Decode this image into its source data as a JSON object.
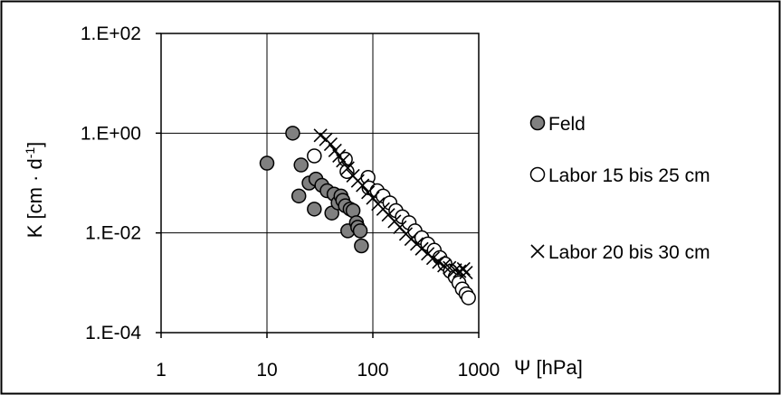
{
  "chart_data": {
    "type": "scatter",
    "title": "",
    "xlabel": "Ψ [hPa]",
    "ylabel": {
      "main": "K  [cm · d",
      "sup": "-1",
      "end": "]"
    },
    "x_scale": "log",
    "y_scale": "log",
    "xlim": [
      1,
      1000
    ],
    "ylim": [
      0.0001,
      100
    ],
    "x_ticks": [
      {
        "value": 1,
        "label": "1"
      },
      {
        "value": 10,
        "label": "10"
      },
      {
        "value": 100,
        "label": "100"
      },
      {
        "value": 1000,
        "label": "1000"
      }
    ],
    "y_ticks": [
      {
        "value": 0.0001,
        "label": "1.E-04"
      },
      {
        "value": 0.01,
        "label": "1.E-02"
      },
      {
        "value": 1,
        "label": "1.E+00"
      },
      {
        "value": 100,
        "label": "1.E+02"
      }
    ],
    "grid": true,
    "legend_position": "right",
    "series": [
      {
        "name": "Feld",
        "marker": "filled-circle",
        "color": "#808080",
        "points": [
          [
            10,
            0.25
          ],
          [
            17.5,
            1.0
          ],
          [
            20,
            0.055
          ],
          [
            21,
            0.23
          ],
          [
            25,
            0.1
          ],
          [
            28,
            0.03
          ],
          [
            29,
            0.12
          ],
          [
            33,
            0.09
          ],
          [
            37,
            0.07
          ],
          [
            41,
            0.025
          ],
          [
            43,
            0.06
          ],
          [
            47,
            0.04
          ],
          [
            50,
            0.055
          ],
          [
            52,
            0.045
          ],
          [
            55,
            0.035
          ],
          [
            58,
            0.011
          ],
          [
            61,
            0.03
          ],
          [
            65,
            0.028
          ],
          [
            70,
            0.016
          ],
          [
            72,
            0.013
          ],
          [
            76,
            0.011
          ],
          [
            78,
            0.0055
          ]
        ]
      },
      {
        "name": "Labor 15 bis 25 cm",
        "marker": "open-circle",
        "color": "#000000",
        "points": [
          [
            28,
            0.35
          ],
          [
            55,
            0.3
          ],
          [
            57,
            0.17
          ],
          [
            90,
            0.13
          ],
          [
            92,
            0.08
          ],
          [
            110,
            0.07
          ],
          [
            125,
            0.055
          ],
          [
            145,
            0.04
          ],
          [
            165,
            0.028
          ],
          [
            190,
            0.021
          ],
          [
            220,
            0.016
          ],
          [
            250,
            0.011
          ],
          [
            290,
            0.008
          ],
          [
            330,
            0.006
          ],
          [
            380,
            0.0045
          ],
          [
            430,
            0.0032
          ],
          [
            480,
            0.0024
          ],
          [
            540,
            0.0017
          ],
          [
            600,
            0.0013
          ],
          [
            650,
            0.001
          ],
          [
            700,
            0.00075
          ],
          [
            760,
            0.0006
          ],
          [
            800,
            0.0005
          ]
        ]
      },
      {
        "name": "Labor 20 bis 30 cm",
        "marker": "x",
        "color": "#000000",
        "points": [
          [
            32,
            0.9
          ],
          [
            36,
            0.75
          ],
          [
            40,
            0.6
          ],
          [
            44,
            0.45
          ],
          [
            48,
            0.35
          ],
          [
            52,
            0.28
          ],
          [
            58,
            0.2
          ],
          [
            65,
            0.14
          ],
          [
            72,
            0.11
          ],
          [
            80,
            0.09
          ],
          [
            90,
            0.065
          ],
          [
            100,
            0.05
          ],
          [
            112,
            0.038
          ],
          [
            125,
            0.03
          ],
          [
            140,
            0.023
          ],
          [
            160,
            0.017
          ],
          [
            180,
            0.013
          ],
          [
            205,
            0.0095
          ],
          [
            230,
            0.0075
          ],
          [
            260,
            0.006
          ],
          [
            290,
            0.0048
          ],
          [
            330,
            0.0038
          ],
          [
            370,
            0.0031
          ],
          [
            420,
            0.0026
          ],
          [
            470,
            0.0022
          ],
          [
            530,
            0.002
          ],
          [
            600,
            0.0018
          ],
          [
            660,
            0.0017
          ],
          [
            720,
            0.0019
          ],
          [
            760,
            0.0016
          ]
        ]
      }
    ]
  }
}
